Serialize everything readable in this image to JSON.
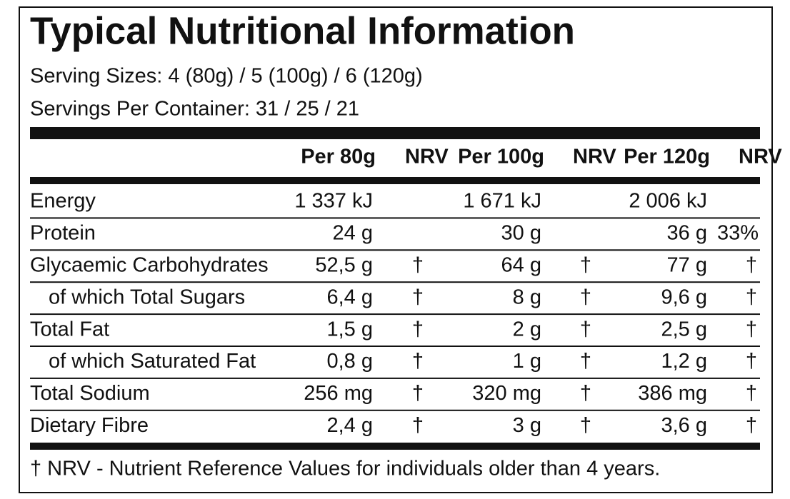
{
  "title": "Typical Nutritional Information",
  "serving_sizes": "Serving Sizes: 4 (80g) / 5 (100g) / 6 (120g)",
  "servings_per_container": "Servings Per Container: 31 / 25 / 21",
  "columns": [
    {
      "amount": "Per 80g",
      "nrv": "NRV"
    },
    {
      "amount": "Per 100g",
      "nrv": "NRV"
    },
    {
      "amount": "Per 120g",
      "nrv": "NRV"
    }
  ],
  "rows": [
    {
      "label": "Energy",
      "values": [
        "1 337 kJ",
        "1 671 kJ",
        "2 006 kJ"
      ]
    },
    {
      "label": "Protein",
      "values": [
        "24 g",
        "30 g",
        "36 g"
      ],
      "nrv": {
        "2": "33%"
      }
    },
    {
      "label": "Glycaemic Carbohydrates",
      "values": [
        "52,5 g",
        "64 g",
        "77 g"
      ],
      "nrv": {
        "0": "†",
        "1": "†",
        "2": "†"
      }
    },
    {
      "label": "of which Total Sugars",
      "values": [
        "6,4  g",
        "8 g",
        "9,6 g"
      ],
      "nrv": {
        "0": "†",
        "1": "†",
        "2": "†"
      }
    },
    {
      "label": "Total Fat",
      "values": [
        "1,5 g",
        "2 g",
        "2,5 g"
      ],
      "nrv": {
        "0": "†",
        "1": "†",
        "2": "†"
      }
    },
    {
      "label": "of which Saturated Fat",
      "values": [
        "0,8 g",
        "1 g",
        "1,2 g"
      ],
      "nrv": {
        "0": "†",
        "1": "†",
        "2": "†"
      }
    },
    {
      "label": "Total Sodium",
      "values": [
        "256 mg",
        "320 mg",
        "386 mg"
      ],
      "nrv": {
        "0": "†",
        "1": "†",
        "2": "†"
      }
    },
    {
      "label": "Dietary Fibre",
      "values": [
        "2,4 g",
        "3 g",
        "3,6 g"
      ],
      "nrv": {
        "0": "†",
        "1": "†",
        "2": "†"
      }
    }
  ],
  "footnote": "† NRV - Nutrient Reference Values for individuals older than 4 years."
}
